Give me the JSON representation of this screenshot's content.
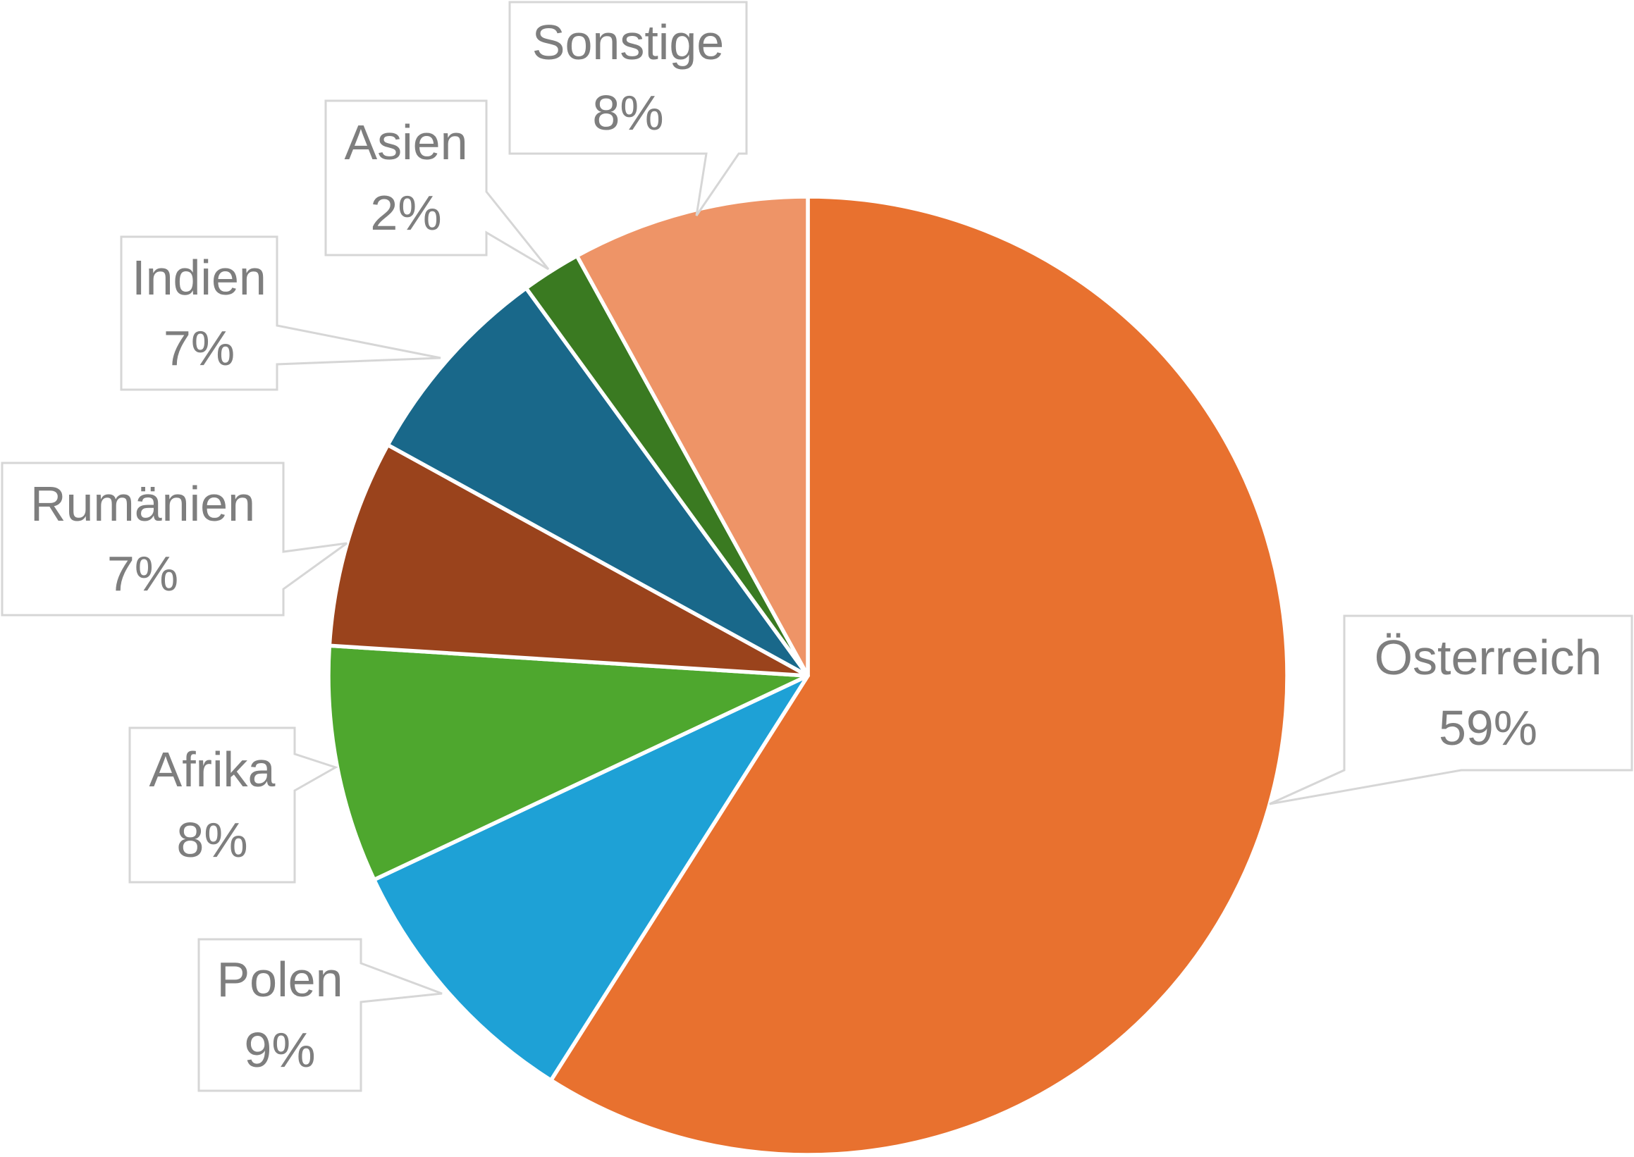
{
  "chart_data": {
    "type": "pie",
    "title": "",
    "start_angle_deg": 0,
    "direction": "clockwise",
    "legend_position": "none",
    "grid": false,
    "slice_border_color": "#FFFFFF",
    "label_box": {
      "fill": "#FFFFFF",
      "border_color": "#D6D6D6",
      "text_color": "#7E7E7E"
    },
    "categories": [
      "Österreich",
      "Polen",
      "Afrika",
      "Rumänien",
      "Indien",
      "Asien",
      "Sonstige"
    ],
    "values": [
      59,
      9,
      8,
      7,
      7,
      2,
      8
    ],
    "slices": [
      {
        "label": "Österreich",
        "value": 59,
        "pct": "59%",
        "color": "#E8712F"
      },
      {
        "label": "Polen",
        "value": 9,
        "pct": "9%",
        "color": "#1EA1D6"
      },
      {
        "label": "Afrika",
        "value": 8,
        "pct": "8%",
        "color": "#4EA72E"
      },
      {
        "label": "Rumänien",
        "value": 7,
        "pct": "7%",
        "color": "#9A431C"
      },
      {
        "label": "Indien",
        "value": 7,
        "pct": "7%",
        "color": "#19688A"
      },
      {
        "label": "Asien",
        "value": 2,
        "pct": "2%",
        "color": "#3A7A21"
      },
      {
        "label": "Sonstige",
        "value": 8,
        "pct": "8%",
        "color": "#EE9467"
      }
    ]
  }
}
